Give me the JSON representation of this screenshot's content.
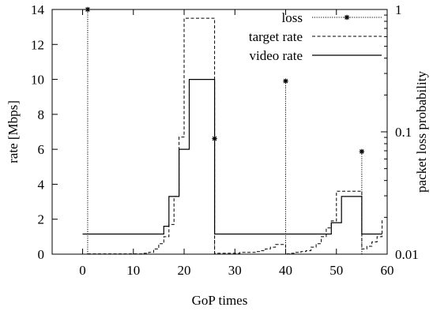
{
  "chart_data": {
    "type": "line",
    "xlabel": "GoP times",
    "ylabel": "rate [Mbps]",
    "y2label": "packet loss probability",
    "xlim": [
      -6,
      60
    ],
    "ylim": [
      0,
      14
    ],
    "y2lim": [
      0.01,
      1
    ],
    "y2scale": "log",
    "grid": false,
    "legend_position": "top-right",
    "x_ticks": [
      0,
      10,
      20,
      30,
      40,
      50,
      60
    ],
    "y_ticks": [
      0,
      2,
      4,
      6,
      8,
      10,
      12,
      14
    ],
    "y2_ticks": [
      0.01,
      0.1,
      1
    ],
    "x_tick_labels": [
      "0",
      "10",
      "20",
      "30",
      "40",
      "50",
      "60"
    ],
    "y_tick_labels": [
      "0",
      "2",
      "4",
      "6",
      "8",
      "10",
      "12",
      "14"
    ],
    "y2_tick_labels": [
      "0.01",
      "0.1",
      "1"
    ],
    "series": [
      {
        "name": "loss",
        "style": "impulse-dotted-star",
        "axis": "y2",
        "x": [
          1,
          26,
          40,
          55
        ],
        "y": [
          1.0,
          0.088,
          0.26,
          0.069
        ]
      },
      {
        "name": "target rate",
        "style": "step-dashed",
        "axis": "y",
        "x": [
          1,
          12,
          13,
          14,
          15,
          16,
          17,
          18,
          19,
          20,
          21,
          26,
          27,
          28,
          29,
          30,
          31,
          32,
          33,
          34,
          35,
          36,
          37,
          38,
          40,
          41,
          42,
          43,
          44,
          45,
          46,
          47,
          48,
          49,
          50,
          51,
          55,
          56,
          57,
          58,
          59
        ],
        "y": [
          0.02,
          0.05,
          0.1,
          0.3,
          0.6,
          1.0,
          1.7,
          3.3,
          6.7,
          13.5,
          13.5,
          0.05,
          0.05,
          0.05,
          0.05,
          0.05,
          0.1,
          0.1,
          0.1,
          0.15,
          0.2,
          0.3,
          0.4,
          0.55,
          0.02,
          0.05,
          0.1,
          0.15,
          0.2,
          0.4,
          0.6,
          1.0,
          1.5,
          1.9,
          3.6,
          3.6,
          0.3,
          0.45,
          0.7,
          1.0,
          2.0
        ]
      },
      {
        "name": "video rate",
        "style": "step-solid",
        "axis": "y",
        "x": [
          0,
          16,
          17,
          19,
          21,
          26,
          49,
          51,
          55,
          59
        ],
        "y": [
          1.15,
          1.6,
          3.3,
          6.0,
          10.0,
          1.15,
          1.8,
          3.3,
          1.15,
          1.15
        ]
      }
    ]
  }
}
